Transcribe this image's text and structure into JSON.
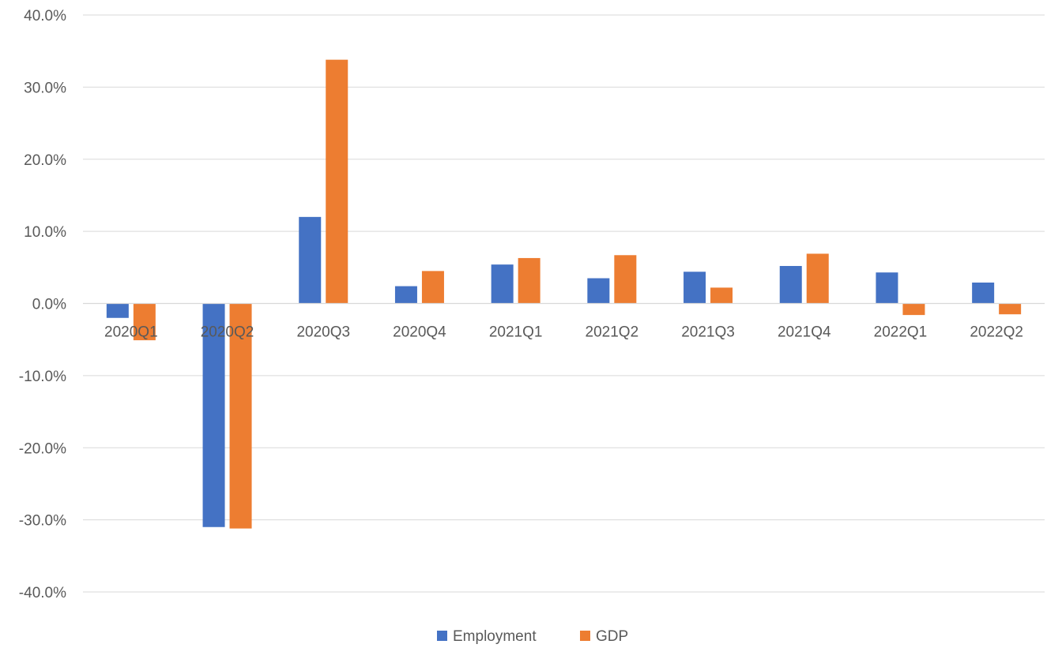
{
  "chart_data": {
    "type": "bar",
    "title": "",
    "xlabel": "",
    "ylabel": "",
    "categories": [
      "2020Q1",
      "2020Q2",
      "2020Q3",
      "2020Q4",
      "2021Q1",
      "2021Q2",
      "2021Q3",
      "2021Q4",
      "2022Q1",
      "2022Q2"
    ],
    "series": [
      {
        "name": "Employment",
        "color": "#4472C4",
        "values": [
          -2.0,
          -31.0,
          12.0,
          2.4,
          5.4,
          3.5,
          4.4,
          5.2,
          4.3,
          2.9
        ]
      },
      {
        "name": "GDP",
        "color": "#ED7D31",
        "values": [
          -5.1,
          -31.2,
          33.8,
          4.5,
          6.3,
          6.7,
          2.2,
          6.9,
          -1.6,
          -1.5
        ]
      }
    ],
    "ylim": [
      -40,
      40
    ],
    "yticks": [
      40,
      30,
      20,
      10,
      0,
      -10,
      -20,
      -30,
      -40
    ],
    "ytick_labels": [
      "40.0%",
      "30.0%",
      "20.0%",
      "10.0%",
      "0.0%",
      "-10.0%",
      "-20.0%",
      "-30.0%",
      "-40.0%"
    ],
    "grid": true,
    "legend_position": "bottom"
  }
}
